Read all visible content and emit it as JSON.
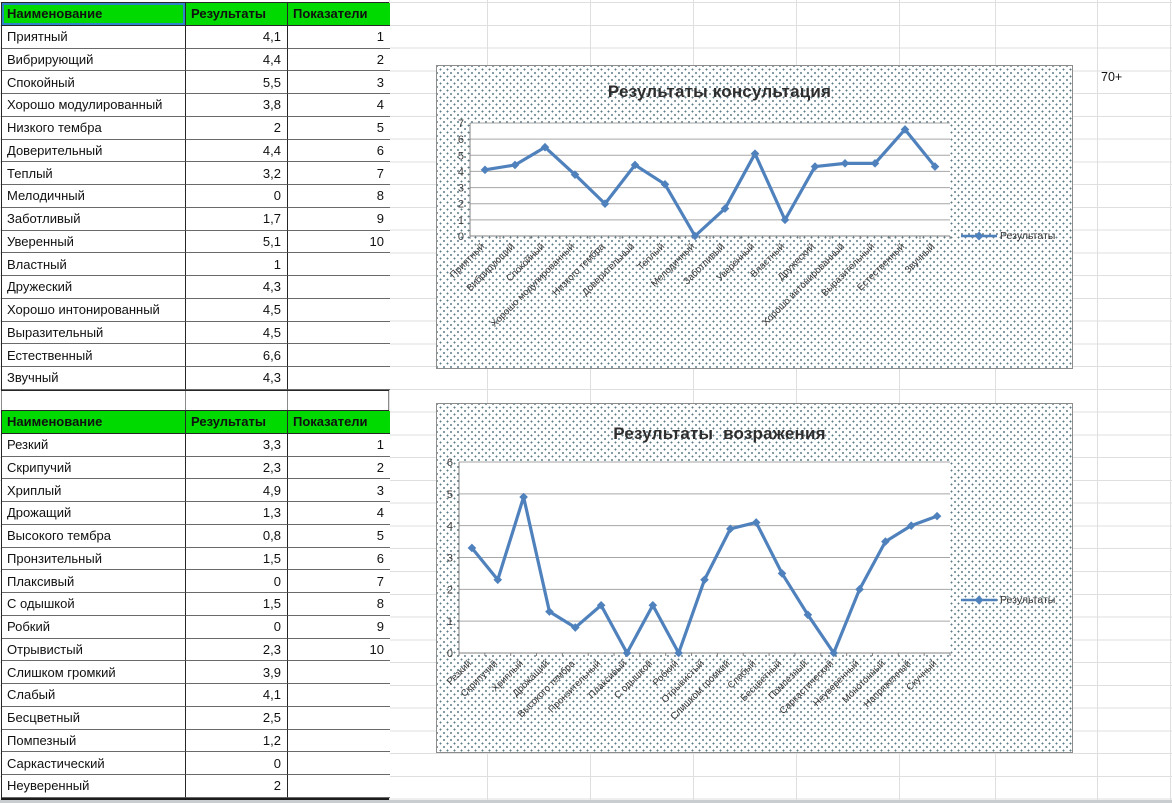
{
  "spreadsheet": {
    "stray_cell_text": "70+"
  },
  "tables": [
    {
      "name": "consultation",
      "headers": [
        "Наименование",
        "Результаты",
        "Показатели"
      ],
      "rows": [
        [
          "Приятный",
          "4,1",
          "1"
        ],
        [
          "Вибрирующий",
          "4,4",
          "2"
        ],
        [
          "Спокойный",
          "5,5",
          "3"
        ],
        [
          "Хорошо модулированный",
          "3,8",
          "4"
        ],
        [
          "Низкого тембра",
          "2",
          "5"
        ],
        [
          "Доверительный",
          "4,4",
          "6"
        ],
        [
          "Теплый",
          "3,2",
          "7"
        ],
        [
          "Мелодичный",
          "0",
          "8"
        ],
        [
          "Заботливый",
          "1,7",
          "9"
        ],
        [
          "Уверенный",
          "5,1",
          "10"
        ],
        [
          "Властный",
          "1",
          ""
        ],
        [
          "Дружеский",
          "4,3",
          ""
        ],
        [
          "Хорошо интонированный",
          "4,5",
          ""
        ],
        [
          "Выразительный",
          "4,5",
          ""
        ],
        [
          "Естественный",
          "6,6",
          ""
        ],
        [
          "Звучный",
          "4,3",
          ""
        ]
      ]
    },
    {
      "name": "objections",
      "headers": [
        "Наименование",
        "Результаты",
        "Показатели"
      ],
      "rows": [
        [
          "Резкий",
          "3,3",
          "1"
        ],
        [
          "Скрипучий",
          "2,3",
          "2"
        ],
        [
          "Хриплый",
          "4,9",
          "3"
        ],
        [
          "Дрожащий",
          "1,3",
          "4"
        ],
        [
          "Высокого тембра",
          "0,8",
          "5"
        ],
        [
          "Пронзительный",
          "1,5",
          "6"
        ],
        [
          "Плаксивый",
          "0",
          "7"
        ],
        [
          "С одышкой",
          "1,5",
          "8"
        ],
        [
          "Робкий",
          "0",
          "9"
        ],
        [
          "Отрывистый",
          "2,3",
          "10"
        ],
        [
          "Слишком громкий",
          "3,9",
          ""
        ],
        [
          "Слабый",
          "4,1",
          ""
        ],
        [
          "Бесцветный",
          "2,5",
          ""
        ],
        [
          "Помпезный",
          "1,2",
          ""
        ],
        [
          "Саркастический",
          "0",
          ""
        ],
        [
          "Неуверенный",
          "2",
          ""
        ]
      ]
    }
  ],
  "chart_data": [
    {
      "type": "line",
      "title": "Результаты консультация",
      "categories": [
        "Приятный",
        "Вибрирующий",
        "Спокойный",
        "Хорошо модулированный",
        "Низкого тембра",
        "Доверительный",
        "Теплый",
        "Мелодичный",
        "Заботливый",
        "Уверенный",
        "Властный",
        "Дружеский",
        "Хорошо интонированный",
        "Выразительный",
        "Естественный",
        "Звучный"
      ],
      "series": [
        {
          "name": "Результаты",
          "values": [
            4.1,
            4.4,
            5.5,
            3.8,
            2,
            4.4,
            3.2,
            0,
            1.7,
            5.1,
            1,
            4.3,
            4.5,
            4.5,
            6.6,
            4.3
          ]
        }
      ],
      "xlabel": "",
      "ylabel": "",
      "ylim": [
        0,
        7
      ],
      "yticks": [
        0,
        1,
        2,
        3,
        4,
        5,
        6,
        7
      ],
      "grid": true,
      "legend_position": "right",
      "marker": "diamond"
    },
    {
      "type": "line",
      "title": "Результаты  возражения",
      "categories": [
        "Резкий",
        "Скрипучий",
        "Хриплый",
        "Дрожащий",
        "Высокого тембра",
        "Пронзительный",
        "Плаксивый",
        "С одышкой",
        "Робкий",
        "Отрывистый",
        "Слишком громкий",
        "Слабый",
        "Бесцветный",
        "Помпезный",
        "Саркастический",
        "Неуверенный",
        "Монотонный",
        "Напряженный",
        "Скучный"
      ],
      "series": [
        {
          "name": "Результаты",
          "values": [
            3.3,
            2.3,
            4.9,
            1.3,
            0.8,
            1.5,
            0,
            1.5,
            0,
            2.3,
            3.9,
            4.1,
            2.5,
            1.2,
            0,
            2,
            3.5,
            4,
            4.3
          ]
        }
      ],
      "xlabel": "",
      "ylabel": "",
      "ylim": [
        0,
        6
      ],
      "yticks": [
        0,
        1,
        2,
        3,
        4,
        5,
        6
      ],
      "grid": true,
      "legend_position": "right",
      "marker": "diamond"
    }
  ],
  "colors": {
    "header_green": "#00DA00",
    "series_blue": "#4F81BD",
    "selection_blue": "#2E86C8",
    "chart_gridline": "#A6A6A6",
    "chart_border": "#8C8C8C",
    "sheet_gridline": "#DFDFDF",
    "pattern_dot": "#5E7B88",
    "title_color": "#2E2E2E"
  }
}
